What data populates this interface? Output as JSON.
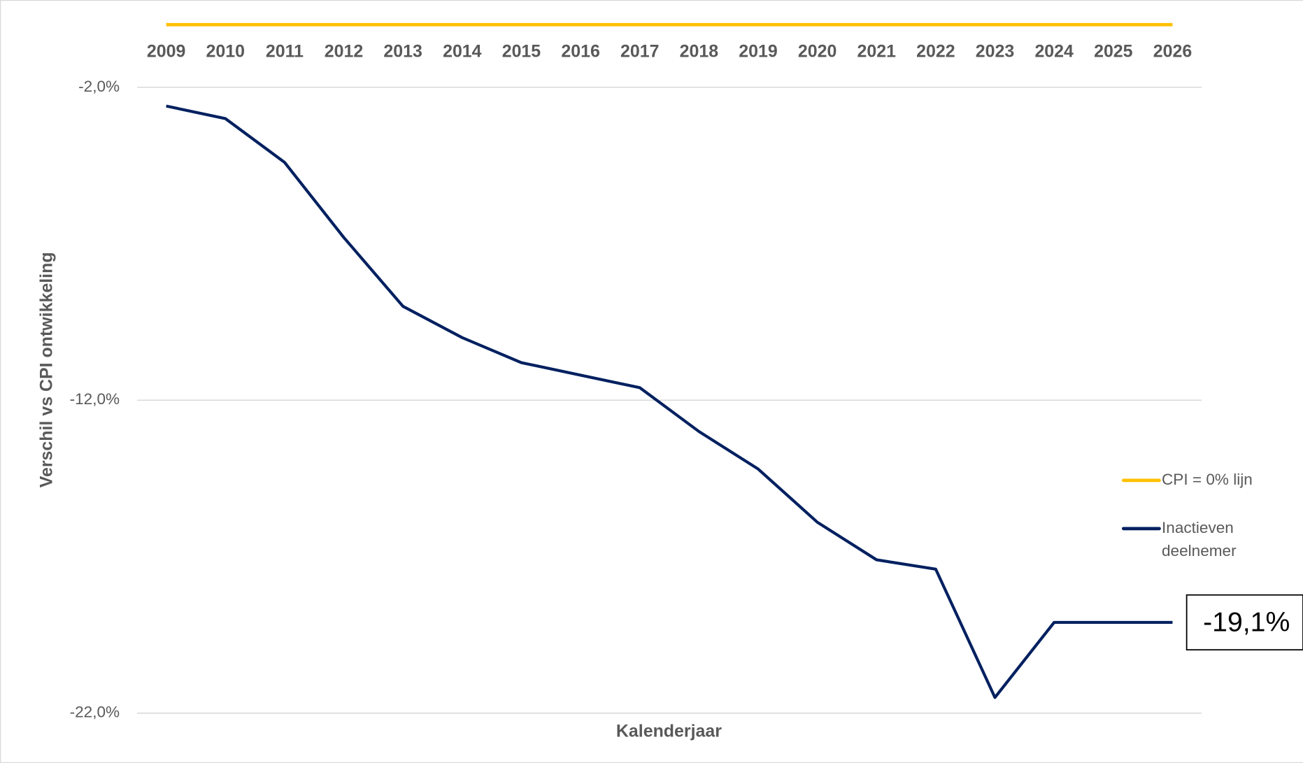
{
  "chart_data": {
    "type": "line",
    "x_label": "Kalenderjaar",
    "y_label": "Verschil vs CPI ontwikkeling",
    "categories": [
      "2009",
      "2010",
      "2011",
      "2012",
      "2013",
      "2014",
      "2015",
      "2016",
      "2017",
      "2018",
      "2019",
      "2020",
      "2021",
      "2022",
      "2023",
      "2024",
      "2025",
      "2026"
    ],
    "series": [
      {
        "name": "CPI = 0% lijn",
        "color": "#ffc000",
        "values": [
          0,
          0,
          0,
          0,
          0,
          0,
          0,
          0,
          0,
          0,
          0,
          0,
          0,
          0,
          0,
          0,
          0,
          0
        ]
      },
      {
        "name": "Inactieven deelnemer",
        "color": "#002060",
        "values": [
          -2.6,
          -3.0,
          -4.4,
          -6.8,
          -9.0,
          -10.0,
          -10.8,
          -11.2,
          -11.6,
          -13.0,
          -14.2,
          -15.9,
          -17.1,
          -17.4,
          -21.5,
          -19.1,
          -19.1,
          -19.1
        ],
        "value_labels": [
          null,
          null,
          null,
          null,
          null,
          null,
          null,
          null,
          null,
          null,
          null,
          null,
          null,
          null,
          null,
          null,
          null,
          "-19,1%"
        ]
      }
    ],
    "ylim": [
      -22,
      0
    ],
    "yticks": [
      {
        "value": -2,
        "label": "-2,0%"
      },
      {
        "value": -12,
        "label": "-12,0%"
      },
      {
        "value": -22,
        "label": "-22,0%"
      }
    ],
    "grid": true,
    "legend": "right"
  }
}
